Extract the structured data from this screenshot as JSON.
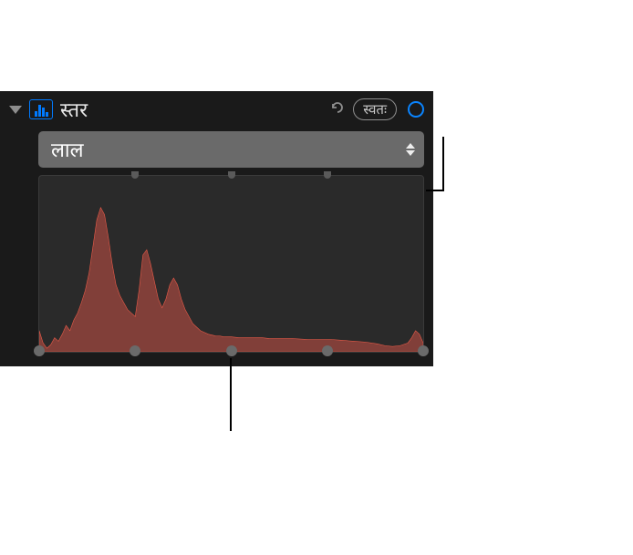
{
  "panel": {
    "title": "स्तर",
    "auto_label": "स्वतः",
    "background_color": "#1a1a1a"
  },
  "dropdown": {
    "selected": "लाल",
    "background_color": "#6a6a6a"
  },
  "histogram": {
    "type": "histogram",
    "channel": "red",
    "fill_color": "rgba(200,80,70,0.55)",
    "stroke_color": "#e85a48",
    "background_color": "#2a2a2a",
    "xlim": [
      0,
      100
    ],
    "ylim": [
      0,
      100
    ],
    "quarter_ticks_pct": [
      25,
      50,
      75
    ],
    "sliders_pct": [
      0,
      25,
      50,
      75,
      100
    ],
    "path_points": [
      [
        0,
        12
      ],
      [
        1,
        5
      ],
      [
        2,
        2
      ],
      [
        3,
        4
      ],
      [
        4,
        8
      ],
      [
        5,
        6
      ],
      [
        6,
        10
      ],
      [
        7,
        15
      ],
      [
        8,
        12
      ],
      [
        9,
        18
      ],
      [
        10,
        22
      ],
      [
        11,
        28
      ],
      [
        12,
        35
      ],
      [
        13,
        45
      ],
      [
        14,
        60
      ],
      [
        15,
        75
      ],
      [
        16,
        82
      ],
      [
        17,
        78
      ],
      [
        18,
        65
      ],
      [
        19,
        50
      ],
      [
        20,
        38
      ],
      [
        21,
        32
      ],
      [
        22,
        28
      ],
      [
        23,
        24
      ],
      [
        24,
        22
      ],
      [
        25,
        20
      ],
      [
        26,
        35
      ],
      [
        27,
        55
      ],
      [
        28,
        58
      ],
      [
        29,
        50
      ],
      [
        30,
        40
      ],
      [
        31,
        30
      ],
      [
        32,
        25
      ],
      [
        33,
        30
      ],
      [
        34,
        38
      ],
      [
        35,
        42
      ],
      [
        36,
        38
      ],
      [
        37,
        30
      ],
      [
        38,
        24
      ],
      [
        39,
        20
      ],
      [
        40,
        16
      ],
      [
        41,
        14
      ],
      [
        42,
        12
      ],
      [
        43,
        11
      ],
      [
        44,
        10
      ],
      [
        45,
        9.5
      ],
      [
        46,
        9
      ],
      [
        47,
        9
      ],
      [
        48,
        8.5
      ],
      [
        49,
        8.5
      ],
      [
        50,
        8.5
      ],
      [
        52,
        8
      ],
      [
        55,
        8
      ],
      [
        58,
        8
      ],
      [
        60,
        7.5
      ],
      [
        63,
        7.5
      ],
      [
        66,
        7.5
      ],
      [
        70,
        7
      ],
      [
        73,
        7
      ],
      [
        76,
        7
      ],
      [
        79,
        6.5
      ],
      [
        82,
        6
      ],
      [
        85,
        5.5
      ],
      [
        88,
        4.5
      ],
      [
        90,
        3.5
      ],
      [
        92,
        3
      ],
      [
        94,
        3.5
      ],
      [
        96,
        5
      ],
      [
        97,
        8
      ],
      [
        98,
        12
      ],
      [
        99,
        10
      ],
      [
        100,
        5
      ]
    ]
  },
  "colors": {
    "accent": "#0a84ff",
    "text": "#e8e8e8",
    "muted": "#8e8e8e"
  }
}
